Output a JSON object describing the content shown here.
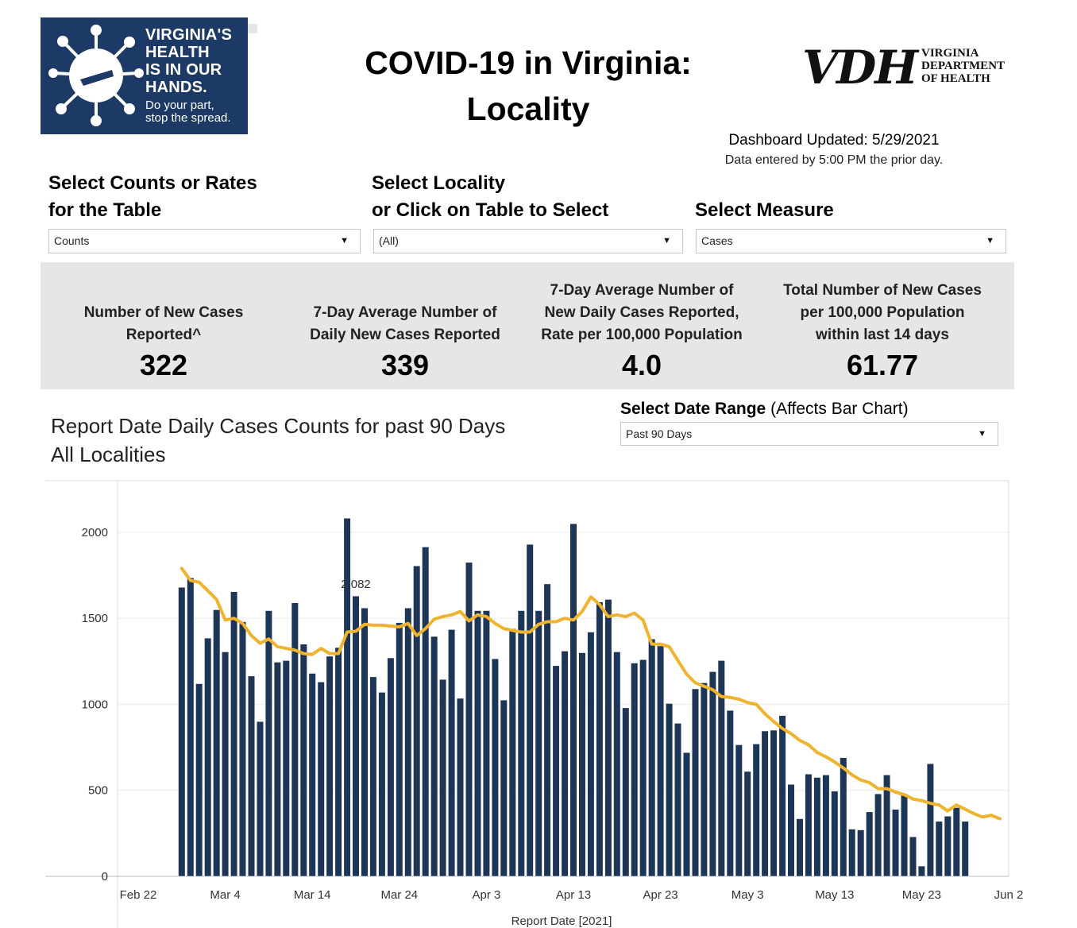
{
  "logo": {
    "lines": [
      "VIRGINIA'S",
      "HEALTH",
      "IS IN OUR",
      "HANDS."
    ],
    "tagline": [
      "Do your part,",
      "stop the spread."
    ],
    "icon": "virus-icon"
  },
  "header": {
    "title_line1": "COVID-19 in Virginia:",
    "title_line2": "Locality",
    "vdh_letters": "VDH",
    "vdh_name": [
      "VIRGINIA",
      "DEPARTMENT",
      "OF HEALTH"
    ],
    "updated": "Dashboard Updated: 5/29/2021",
    "entered": "Data entered by 5:00 PM the prior day."
  },
  "filters": {
    "counts": {
      "label_line1": "Select Counts or Rates",
      "label_line2": "for the Table",
      "value": "Counts"
    },
    "locality": {
      "label_line1": "Select Locality",
      "label_line2": "or Click on Table to Select",
      "value": "(All)"
    },
    "measure": {
      "label": "Select Measure",
      "value": "Cases"
    },
    "arrow": "▼"
  },
  "kpis": [
    {
      "label": [
        "Number of New Cases",
        "Reported^"
      ],
      "value": "322"
    },
    {
      "label": [
        "7-Day Average Number of",
        "Daily New Cases Reported"
      ],
      "value": "339"
    },
    {
      "label": [
        "7-Day Average Number of",
        "New Daily Cases Reported,",
        "Rate per 100,000 Population"
      ],
      "value": "4.0"
    },
    {
      "label": [
        "Total Number of New Cases",
        "per 100,000 Population",
        "within last 14 days"
      ],
      "value": "61.77"
    }
  ],
  "chart_section": {
    "title_line1": "Report Date Daily Cases Counts for past 90 Days",
    "title_line2": "All Localities",
    "range_label_bold": "Select Date Range",
    "range_label_rest": " (Affects Bar Chart)",
    "range_value": "Past 90 Days"
  },
  "colors": {
    "bar": "#1d3557",
    "line": "#f0b32e",
    "kpi_band": "#e6e6e6",
    "logo_bg": "#1d3a66"
  },
  "chart_data": {
    "type": "bar",
    "xlabel": "Report Date [2021]",
    "ylabel": "",
    "ylim": [
      0,
      2300
    ],
    "yticks": [
      0,
      500,
      1000,
      1500,
      2000
    ],
    "xticks": [
      "Feb 22",
      "Mar 4",
      "Mar 14",
      "Mar 24",
      "Apr 3",
      "Apr 13",
      "Apr 23",
      "May 3",
      "May 13",
      "May 23",
      "Jun 2"
    ],
    "x_start": "2021-02-27",
    "annotation": {
      "date": "2021-03-19",
      "text": "2,082"
    },
    "grid": true,
    "series": [
      {
        "type": "bar",
        "values": [
          1680,
          1735,
          1120,
          1385,
          1550,
          1305,
          1655,
          1480,
          1165,
          900,
          1545,
          1245,
          1255,
          1590,
          1350,
          1180,
          1130,
          1280,
          1330,
          2082,
          1630,
          1560,
          1160,
          1070,
          1270,
          1475,
          1560,
          1805,
          1915,
          1395,
          1145,
          1435,
          1035,
          1825,
          1545,
          1545,
          1265,
          1025,
          1440,
          1545,
          1930,
          1545,
          1700,
          1225,
          1310,
          2050,
          1300,
          1420,
          1595,
          1610,
          1305,
          980,
          1240,
          1260,
          1380,
          1340,
          1005,
          890,
          720,
          1090,
          1125,
          1190,
          1255,
          965,
          765,
          610,
          770,
          845,
          850,
          935,
          535,
          335,
          595,
          575,
          590,
          495,
          690,
          275,
          270,
          375,
          480,
          590,
          390,
          480,
          230,
          60,
          655,
          320,
          350,
          400,
          320
        ]
      },
      {
        "type": "line",
        "values": [
          1790,
          1720,
          1710,
          1660,
          1610,
          1490,
          1500,
          1470,
          1400,
          1355,
          1380,
          1335,
          1325,
          1315,
          1295,
          1290,
          1325,
          1295,
          1295,
          1420,
          1425,
          1465,
          1460,
          1460,
          1455,
          1450,
          1470,
          1400,
          1440,
          1495,
          1510,
          1520,
          1540,
          1485,
          1520,
          1510,
          1470,
          1440,
          1430,
          1420,
          1420,
          1465,
          1480,
          1480,
          1500,
          1490,
          1540,
          1625,
          1580,
          1510,
          1520,
          1510,
          1530,
          1490,
          1350,
          1350,
          1335,
          1255,
          1175,
          1125,
          1105,
          1085,
          1045,
          1040,
          1030,
          1010,
          1000,
          945,
          900,
          860,
          830,
          790,
          765,
          720,
          695,
          665,
          630,
          590,
          560,
          545,
          510,
          510,
          490,
          475,
          450,
          440,
          425,
          415,
          380,
          415,
          390,
          365,
          345,
          355,
          335
        ]
      }
    ]
  }
}
